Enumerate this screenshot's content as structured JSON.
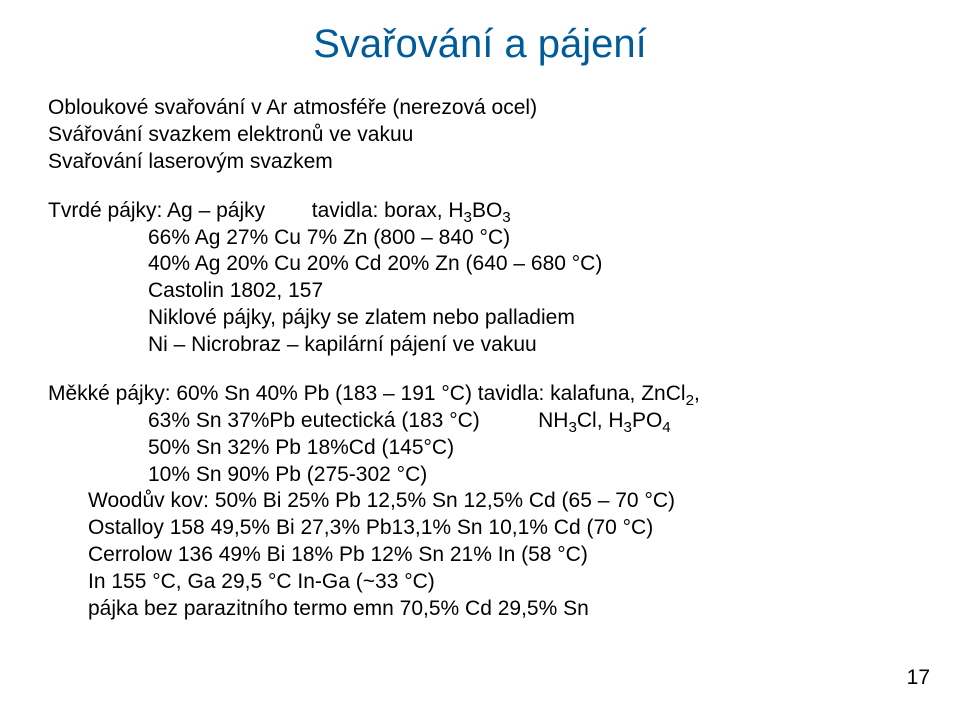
{
  "title": "Svařování a pájení",
  "intro": {
    "l1": "Obloukové svařování v Ar atmosféře (nerezová ocel)",
    "l2": "Svářování svazkem elektronů ve vakuu",
    "l3": "Svařování laserovým svazkem"
  },
  "tvrde": {
    "l1a": "Tvrdé pájky: Ag – pájky",
    "l1b": "tavidla: borax, H",
    "l1c": "BO",
    "l2": "66% Ag 27% Cu 7% Zn (800 – 840 °C)",
    "l3": "40% Ag 20% Cu 20% Cd 20% Zn (640 – 680 °C)",
    "l4": "Castolin 1802, 157",
    "l5": "Niklové pájky, pájky se zlatem nebo palladiem",
    "l6": "Ni – Nicrobraz – kapilární pájení ve vakuu"
  },
  "mekke": {
    "l1a": "Měkké pájky:  60% Sn 40% Pb (183 – 191 °C) tavidla: kalafuna, ZnCl",
    "l1b": ",",
    "l2a": "63% Sn 37%Pb eutectická (183 °C)",
    "l2b": "NH",
    "l2c": "Cl, H",
    "l2d": "PO",
    "l3": "50% Sn 32% Pb 18%Cd (145°C)",
    "l4": "10% Sn 90% Pb (275-302 °C)",
    "l5": "Woodův kov: 50% Bi 25% Pb 12,5% Sn 12,5% Cd (65 – 70 °C)",
    "l6": "Ostalloy 158 49,5% Bi 27,3% Pb13,1% Sn 10,1% Cd (70 °C)",
    "l7": "Cerrolow 136 49% Bi 18% Pb 12% Sn 21% In (58 °C)",
    "l8": "In 155 °C, Ga 29,5 °C In-Ga (~33 °C)",
    "l9": "pájka bez parazitního termo emn 70,5% Cd 29,5% Sn"
  },
  "sub": {
    "s2": "2",
    "s3": "3",
    "s4": "4"
  },
  "pagenum": "17"
}
